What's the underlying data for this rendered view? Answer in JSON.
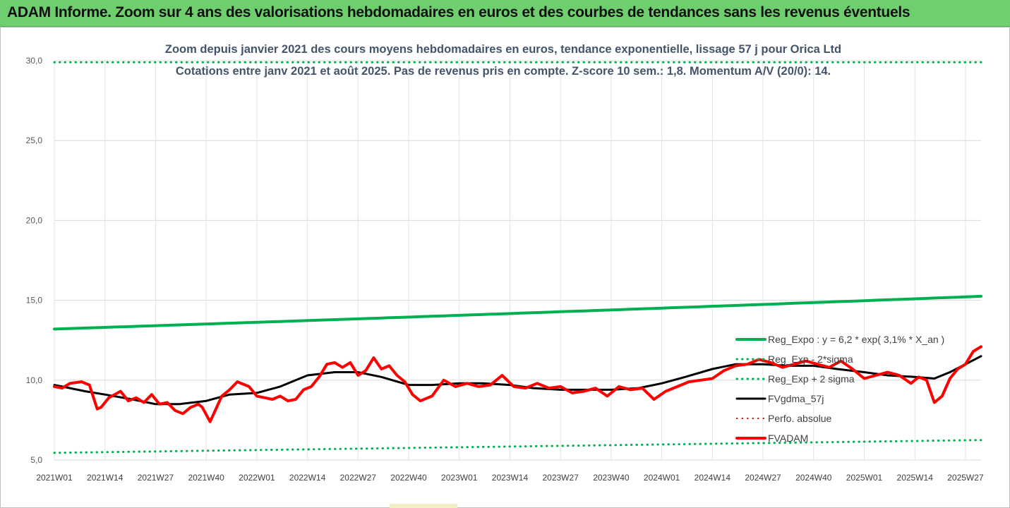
{
  "header": {
    "title": "ADAM Informe. Zoom sur 4 ans des valorisations hebdomadaires en euros et des courbes de tendances sans les revenus éventuels"
  },
  "chart_data": {
    "type": "line",
    "title": "Zoom depuis janvier 2021 des cours moyens hebdomadaires en euros, tendance exponentielle, lissage 57 j pour Orica Ltd",
    "subtitle": "Cotations entre janv 2021 et août 2025. Pas de revenus pris en compte. Z-score 10 sem.: 1,8. Momentum A/V (20/0): 14.",
    "xlabel": "",
    "ylabel": "",
    "ylim": [
      5,
      30
    ],
    "yticks": [
      "5,0",
      "10,0",
      "15,0",
      "20,0",
      "25,0",
      "30,0"
    ],
    "x_tick_labels": [
      "2021W01",
      "2021W14",
      "2021W27",
      "2021W40",
      "2022W01",
      "2022W14",
      "2022W27",
      "2022W40",
      "2023W01",
      "2023W14",
      "2023W27",
      "2023W40",
      "2024W01",
      "2024W14",
      "2024W27",
      "2024W40",
      "2025W01",
      "2025W14",
      "2025W27"
    ],
    "x_tick_weeks": [
      0,
      13,
      26,
      39,
      52,
      65,
      78,
      91,
      104,
      117,
      130,
      143,
      156,
      169,
      182,
      195,
      208,
      221,
      234
    ],
    "week_count": 239,
    "grid": "horizontal and vertical",
    "legend_position": "right",
    "series": [
      {
        "name": "Reg_Expo : y = 6,2 * exp( 3,1% *  X_an )",
        "color": "#00b050",
        "style": "solid",
        "width": 4,
        "x": [
          0,
          238
        ],
        "values": [
          13.2,
          15.25
        ]
      },
      {
        "name": "Reg_Exp - 2*sigma",
        "color": "#00b050",
        "style": "dotted",
        "width": 3,
        "x": [
          0,
          238
        ],
        "values": [
          5.45,
          6.25
        ]
      },
      {
        "name": "Reg_Exp + 2 sigma",
        "color": "#00b050",
        "style": "dotted",
        "width": 3,
        "x": [
          0,
          238
        ],
        "values": [
          29.9,
          29.9
        ]
      },
      {
        "name": "FVgdma_57j",
        "color": "#000000",
        "style": "solid",
        "width": 3,
        "x": [
          0,
          8,
          13,
          20,
          26,
          32,
          39,
          45,
          52,
          58,
          65,
          72,
          78,
          84,
          91,
          97,
          104,
          110,
          117,
          123,
          130,
          136,
          143,
          150,
          156,
          162,
          169,
          175,
          182,
          188,
          195,
          201,
          208,
          214,
          221,
          226,
          230,
          234,
          238
        ],
        "values": [
          9.7,
          9.3,
          9.1,
          8.8,
          8.5,
          8.5,
          8.7,
          9.1,
          9.2,
          9.6,
          10.3,
          10.5,
          10.5,
          10.2,
          9.7,
          9.7,
          9.8,
          9.8,
          9.7,
          9.5,
          9.4,
          9.4,
          9.4,
          9.5,
          9.8,
          10.2,
          10.7,
          11.0,
          11.0,
          10.9,
          10.9,
          10.7,
          10.5,
          10.3,
          10.2,
          10.1,
          10.5,
          11.0,
          11.5
        ]
      },
      {
        "name": "Perfo. absolue",
        "color": "#c00000",
        "style": "dotted",
        "width": 2,
        "x": [],
        "values": []
      },
      {
        "name": "FVADAM",
        "color": "#ff0000",
        "style": "solid",
        "width": 4,
        "x": [
          0,
          2,
          4,
          7,
          9,
          11,
          12,
          14,
          17,
          19,
          21,
          23,
          25,
          27,
          29,
          31,
          33,
          35,
          37,
          38,
          40,
          43,
          45,
          47,
          50,
          52,
          54,
          56,
          58,
          60,
          62,
          64,
          66,
          68,
          70,
          72,
          74,
          76,
          78,
          80,
          82,
          84,
          86,
          88,
          90,
          92,
          94,
          97,
          100,
          103,
          106,
          109,
          112,
          115,
          118,
          121,
          124,
          127,
          130,
          133,
          136,
          139,
          142,
          145,
          148,
          151,
          154,
          157,
          160,
          163,
          166,
          169,
          172,
          175,
          178,
          181,
          184,
          187,
          190,
          193,
          196,
          199,
          202,
          205,
          208,
          211,
          214,
          217,
          220,
          222,
          224,
          226,
          228,
          230,
          232,
          234,
          236,
          238
        ],
        "values": [
          9.6,
          9.5,
          9.8,
          9.9,
          9.7,
          8.2,
          8.3,
          8.9,
          9.3,
          8.7,
          8.9,
          8.6,
          9.1,
          8.5,
          8.6,
          8.1,
          7.9,
          8.3,
          8.5,
          8.3,
          7.4,
          9.0,
          9.4,
          9.9,
          9.6,
          9.0,
          8.9,
          8.8,
          9.0,
          8.7,
          8.8,
          9.4,
          9.6,
          10.2,
          11.0,
          11.1,
          10.8,
          11.1,
          10.3,
          10.6,
          11.4,
          10.7,
          10.9,
          10.3,
          9.9,
          9.1,
          8.7,
          9.0,
          10.0,
          9.6,
          9.8,
          9.6,
          9.7,
          10.3,
          9.6,
          9.5,
          9.8,
          9.5,
          9.6,
          9.2,
          9.3,
          9.5,
          9.0,
          9.6,
          9.4,
          9.5,
          8.8,
          9.3,
          9.6,
          9.9,
          10.0,
          10.1,
          10.6,
          10.9,
          11.0,
          11.3,
          11.1,
          10.8,
          11.0,
          11.2,
          11.0,
          10.8,
          11.2,
          10.7,
          10.1,
          10.3,
          10.5,
          10.3,
          9.8,
          10.2,
          10.0,
          8.6,
          9.0,
          10.1,
          10.7,
          11.0,
          11.8,
          12.1
        ]
      }
    ]
  }
}
